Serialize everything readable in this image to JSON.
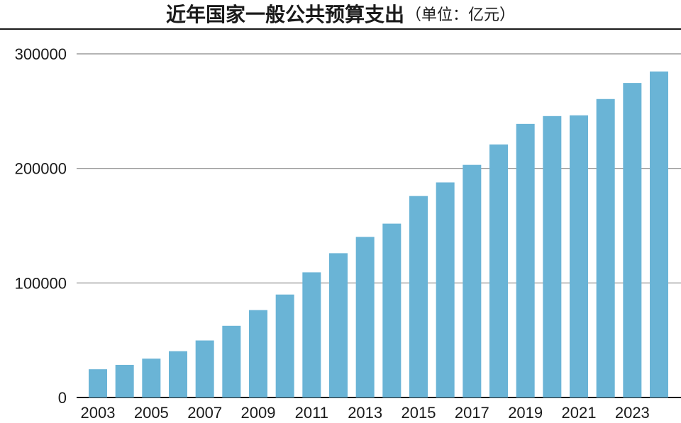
{
  "header": {
    "title": "近年国家一般公共预算支出",
    "unit": "（单位：亿元）"
  },
  "colors": {
    "bar": "#6ab4d6",
    "grid": "#888888",
    "axis": "#1a1a1a"
  },
  "chart_data": {
    "type": "bar",
    "title": "近年国家一般公共预算支出（单位：亿元）",
    "xlabel": "",
    "ylabel": "",
    "ylim": [
      0,
      300000
    ],
    "grid": true,
    "yticks": [
      "0",
      "100000",
      "200000",
      "300000"
    ],
    "xticks": [
      "2003",
      "2005",
      "2007",
      "2009",
      "2011",
      "2013",
      "2015",
      "2017",
      "2019",
      "2021",
      "2023"
    ],
    "categories": [
      "2003",
      "2004",
      "2005",
      "2006",
      "2007",
      "2008",
      "2009",
      "2010",
      "2011",
      "2012",
      "2013",
      "2014",
      "2015",
      "2016",
      "2017",
      "2018",
      "2019",
      "2020",
      "2021",
      "2022",
      "2023",
      "2024"
    ],
    "values": [
      24650,
      28487,
      33930,
      40423,
      49781,
      62593,
      76300,
      89874,
      109248,
      125953,
      140212,
      151786,
      175878,
      187755,
      203085,
      220904,
      238858,
      245679,
      246322,
      260552,
      274574,
      284612
    ]
  }
}
